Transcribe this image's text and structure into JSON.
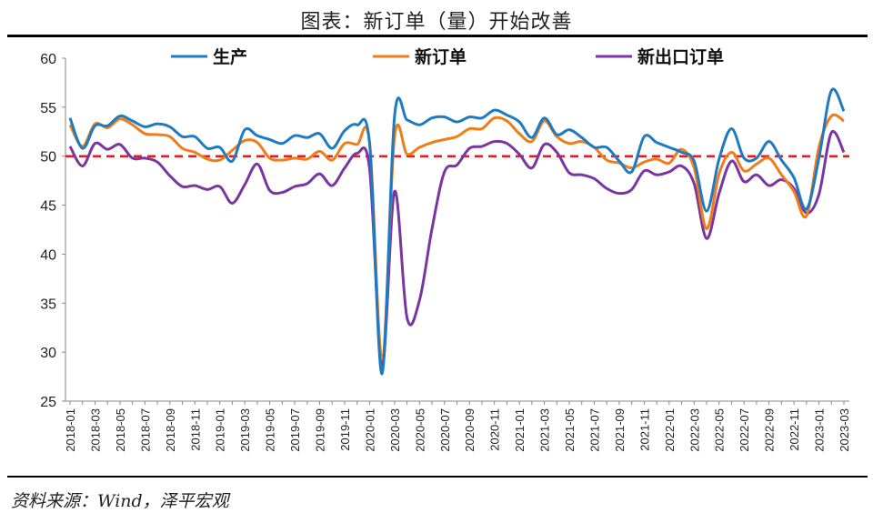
{
  "title": "图表：新订单（量）开始改善",
  "source": "资料来源：Wind，泽平宏观",
  "chart_data": {
    "type": "line",
    "title": "图表：新订单（量）开始改善",
    "ylim": [
      25,
      60
    ],
    "yticks": [
      25,
      30,
      35,
      40,
      45,
      50,
      55,
      60
    ],
    "reference_line": {
      "value": 50,
      "color": "#e8191f",
      "style": "dashed"
    },
    "x": [
      "2018-01",
      "2018-02",
      "2018-03",
      "2018-04",
      "2018-05",
      "2018-06",
      "2018-07",
      "2018-08",
      "2018-09",
      "2018-10",
      "2018-11",
      "2018-12",
      "2019-01",
      "2019-02",
      "2019-03",
      "2019-04",
      "2019-05",
      "2019-06",
      "2019-07",
      "2019-08",
      "2019-09",
      "2019-10",
      "2019-11",
      "2019-12",
      "2020-01",
      "2020-02",
      "2020-03",
      "2020-04",
      "2020-05",
      "2020-06",
      "2020-07",
      "2020-08",
      "2020-09",
      "2020-10",
      "2020-11",
      "2020-12",
      "2021-01",
      "2021-02",
      "2021-03",
      "2021-04",
      "2021-05",
      "2021-06",
      "2021-07",
      "2021-08",
      "2021-09",
      "2021-10",
      "2021-11",
      "2021-12",
      "2022-01",
      "2022-02",
      "2022-03",
      "2022-04",
      "2022-05",
      "2022-06",
      "2022-07",
      "2022-08",
      "2022-09",
      "2022-10",
      "2022-11",
      "2022-12",
      "2023-01",
      "2023-02",
      "2023-03"
    ],
    "series": [
      {
        "name": "生产",
        "color": "#1f7bc1",
        "values": [
          53.9,
          50.8,
          53.1,
          53.1,
          54.1,
          53.6,
          53.0,
          53.3,
          53.0,
          52.0,
          52.0,
          50.8,
          50.9,
          49.5,
          52.7,
          52.1,
          51.7,
          51.3,
          52.1,
          51.9,
          52.3,
          50.8,
          52.6,
          53.2,
          51.3,
          27.8,
          54.1,
          53.7,
          53.2,
          53.9,
          54.0,
          53.5,
          54.0,
          53.9,
          54.7,
          54.2,
          53.5,
          51.9,
          53.9,
          52.2,
          52.7,
          51.9,
          50.9,
          50.9,
          49.5,
          48.4,
          52.0,
          51.4,
          50.9,
          50.4,
          49.5,
          44.4,
          49.7,
          52.8,
          49.8,
          49.8,
          51.5,
          49.6,
          47.8,
          44.6,
          49.8,
          56.7,
          54.6
        ]
      },
      {
        "name": "新订单",
        "color": "#f07c1a",
        "values": [
          53.2,
          51.0,
          53.3,
          52.9,
          53.8,
          53.2,
          52.3,
          52.2,
          52.0,
          50.8,
          50.4,
          49.7,
          49.6,
          50.6,
          51.6,
          51.4,
          49.8,
          49.6,
          49.8,
          49.7,
          50.5,
          49.6,
          51.3,
          51.2,
          51.4,
          29.3,
          52.0,
          50.2,
          50.9,
          51.4,
          51.7,
          52.0,
          52.8,
          52.8,
          53.9,
          53.6,
          52.3,
          51.5,
          53.6,
          52.0,
          51.3,
          51.5,
          50.9,
          49.6,
          49.3,
          48.8,
          49.4,
          49.7,
          49.3,
          50.7,
          48.8,
          42.6,
          48.2,
          50.4,
          48.5,
          49.2,
          49.8,
          48.1,
          46.4,
          43.9,
          50.9,
          54.1,
          53.6
        ]
      },
      {
        "name": "新出口订单",
        "color": "#7b35a0",
        "values": [
          51.0,
          49.0,
          51.3,
          50.7,
          51.2,
          49.8,
          49.8,
          49.4,
          48.0,
          46.9,
          47.0,
          46.6,
          46.9,
          45.2,
          47.1,
          49.2,
          46.5,
          46.3,
          46.9,
          47.2,
          48.2,
          47.0,
          48.8,
          50.3,
          48.7,
          28.7,
          46.4,
          33.5,
          35.3,
          42.6,
          48.4,
          49.1,
          50.8,
          51.0,
          51.5,
          51.3,
          50.2,
          48.8,
          51.2,
          50.4,
          48.3,
          48.1,
          47.7,
          46.7,
          46.2,
          46.6,
          48.5,
          48.1,
          48.4,
          49.0,
          47.2,
          41.6,
          46.2,
          49.5,
          47.4,
          48.1,
          47.0,
          47.6,
          46.7,
          44.2,
          46.1,
          52.4,
          50.4
        ]
      }
    ]
  }
}
